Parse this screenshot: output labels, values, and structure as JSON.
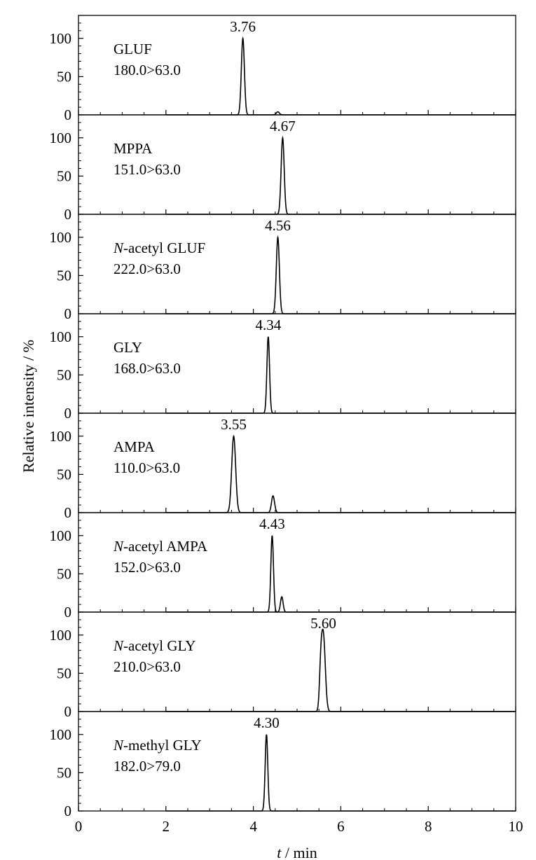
{
  "chart_data": {
    "type": "line",
    "xlabel_italic": "t",
    "xlabel_rest": " / min",
    "ylabel": "Relative intensity / %",
    "xlim": [
      0,
      10
    ],
    "ylim": [
      0,
      130
    ],
    "x_ticks": [
      0,
      2,
      4,
      6,
      8,
      10
    ],
    "x_tick_labels": [
      "0",
      "2",
      "4",
      "6",
      "8",
      "10"
    ],
    "y_ticks": [
      0,
      50,
      100
    ],
    "y_tick_labels": [
      "0",
      "50",
      "100"
    ],
    "grid": false,
    "panels": [
      {
        "name_prefix": "",
        "name_main": "GLUF",
        "transition": "180.0>63.0",
        "peak_label": "3.76",
        "peaks": [
          {
            "rt": 3.76,
            "height": 100,
            "width": 0.035
          },
          {
            "rt": 4.56,
            "height": 4,
            "width": 0.035
          }
        ]
      },
      {
        "name_prefix": "",
        "name_main": "MPPA",
        "transition": "151.0>63.0",
        "peak_label": "4.67",
        "peaks": [
          {
            "rt": 4.67,
            "height": 100,
            "width": 0.035
          }
        ]
      },
      {
        "name_prefix": "N",
        "name_main": "-acetyl GLUF",
        "transition": "222.0>63.0",
        "peak_label": "4.56",
        "peaks": [
          {
            "rt": 4.56,
            "height": 100,
            "width": 0.035
          }
        ]
      },
      {
        "name_prefix": "",
        "name_main": "GLY",
        "transition": "168.0>63.0",
        "peak_label": "4.34",
        "peaks": [
          {
            "rt": 4.34,
            "height": 100,
            "width": 0.03
          }
        ]
      },
      {
        "name_prefix": "",
        "name_main": "AMPA",
        "transition": "110.0>63.0",
        "peak_label": "3.55",
        "peaks": [
          {
            "rt": 3.55,
            "height": 100,
            "width": 0.045
          },
          {
            "rt": 4.45,
            "height": 22,
            "width": 0.035
          }
        ]
      },
      {
        "name_prefix": "N",
        "name_main": "-acetyl AMPA",
        "transition": "152.0>63.0",
        "peak_label": "4.43",
        "peaks": [
          {
            "rt": 4.43,
            "height": 100,
            "width": 0.03
          },
          {
            "rt": 4.65,
            "height": 20,
            "width": 0.03
          }
        ]
      },
      {
        "name_prefix": "N",
        "name_main": "-acetyl GLY",
        "transition": "210.0>63.0",
        "peak_label": "5.60",
        "peaks": [
          {
            "rt": 5.6,
            "height": 100,
            "width": 0.045
          },
          {
            "rt": 5.54,
            "height": 40,
            "width": 0.03
          }
        ]
      },
      {
        "name_prefix": "N",
        "name_main": "-methyl GLY",
        "transition": "182.0>79.0",
        "peak_label": "4.30",
        "peaks": [
          {
            "rt": 4.3,
            "height": 100,
            "width": 0.03
          }
        ]
      }
    ]
  }
}
